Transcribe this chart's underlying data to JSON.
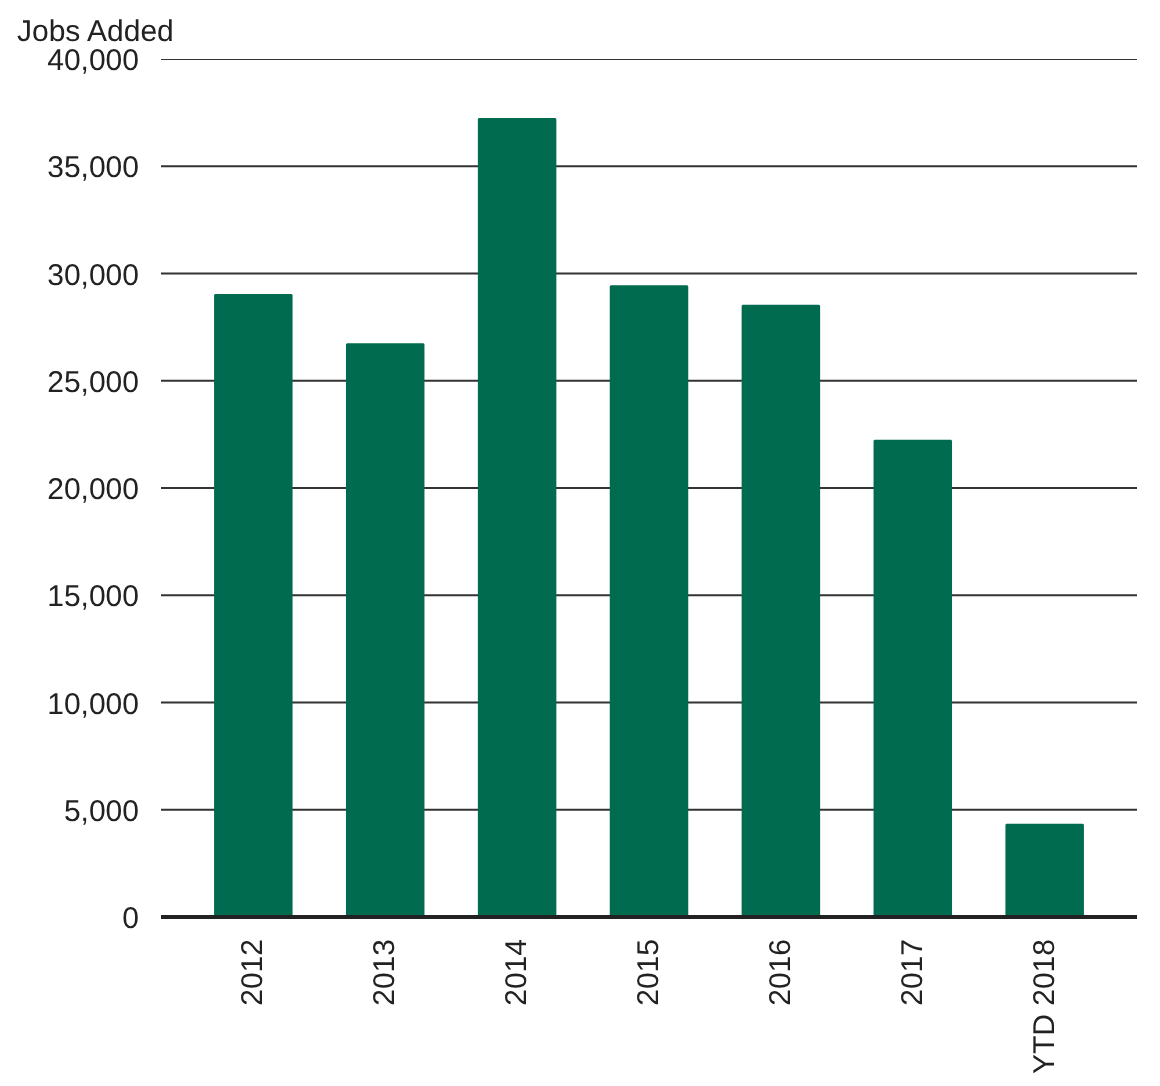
{
  "chart_data": {
    "type": "bar",
    "ylabel": "Jobs Added",
    "categories": [
      "2012",
      "2013",
      "2014",
      "2015",
      "2016",
      "2017",
      "YTD 2018"
    ],
    "values": [
      29000,
      26700,
      37200,
      29400,
      28500,
      22200,
      4300
    ],
    "color": "#006b4f",
    "ylim": [
      0,
      40000
    ],
    "yticks": [
      {
        "value": 0,
        "label": "0"
      },
      {
        "value": 5000,
        "label": "5,000"
      },
      {
        "value": 10000,
        "label": "10,000"
      },
      {
        "value": 15000,
        "label": "15,000"
      },
      {
        "value": 20000,
        "label": "20,000"
      },
      {
        "value": 25000,
        "label": "25,000"
      },
      {
        "value": 30000,
        "label": "30,000"
      },
      {
        "value": 35000,
        "label": "35,000"
      },
      {
        "value": 40000,
        "label": "40,000"
      }
    ],
    "grid": "y"
  }
}
